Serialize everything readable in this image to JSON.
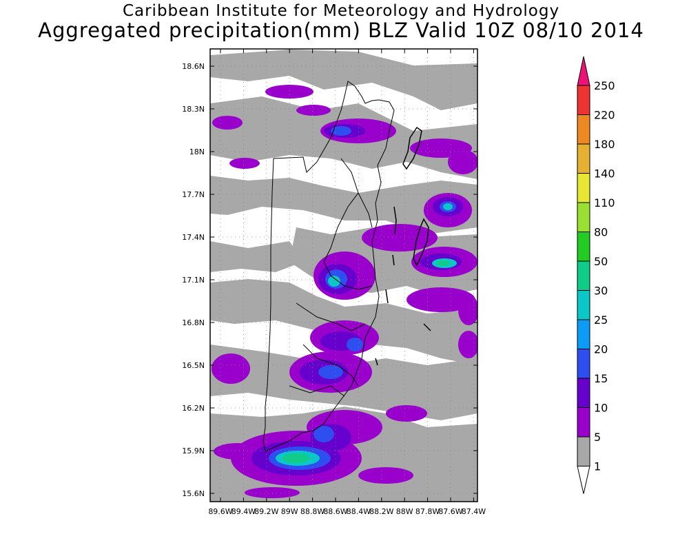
{
  "title_line1": "Caribbean Institute for Meteorology and Hydrology",
  "title_line2": "Aggregated precipitation(mm) BLZ Valid 10Z 08/10 2014",
  "lat_labels": [
    "18.6N",
    "18.3N",
    "18N",
    "17.7N",
    "17.4N",
    "17.1N",
    "16.8N",
    "16.5N",
    "16.2N",
    "15.9N",
    "15.6N"
  ],
  "lon_labels": [
    "89.6W",
    "89.4W",
    "89.2W",
    "89W",
    "88.8W",
    "88.6W",
    "88.4W",
    "88.2W",
    "88W",
    "87.8W",
    "87.6W",
    "87.4W"
  ],
  "colorbar": {
    "levels": [
      "1",
      "5",
      "10",
      "15",
      "20",
      "25",
      "30",
      "50",
      "80",
      "110",
      "140",
      "180",
      "220",
      "250"
    ],
    "colors": [
      "#ffffff",
      "#a8a8a8",
      "#9900cc",
      "#6600cc",
      "#2f4ef0",
      "#0d9cf5",
      "#0cc7c7",
      "#11cc88",
      "#22cc22",
      "#99e033",
      "#e6e633",
      "#e6b033",
      "#ee8822",
      "#ee3333",
      "#ee1177"
    ]
  }
}
